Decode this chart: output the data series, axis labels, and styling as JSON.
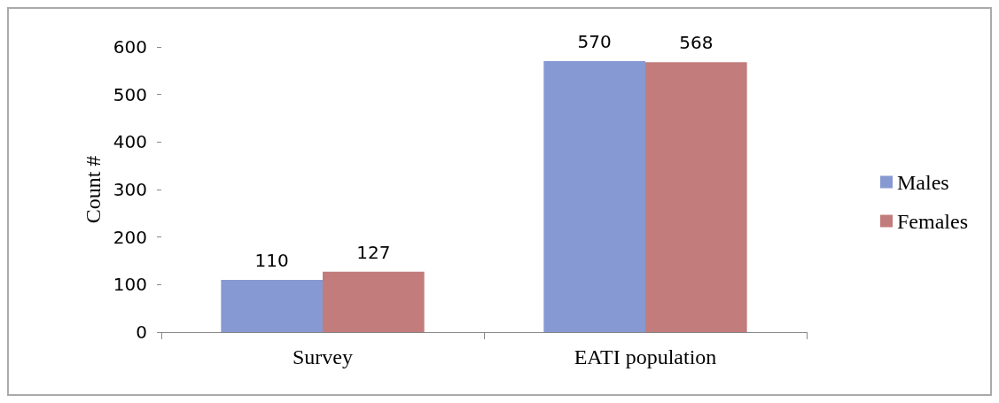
{
  "chart_data": {
    "type": "bar",
    "ylabel": "Count #",
    "categories": [
      "Survey",
      "EATI population"
    ],
    "series": [
      {
        "name": "Males",
        "color": "#8699d2",
        "values": [
          110,
          570
        ]
      },
      {
        "name": "Females",
        "color": "#c27c7b",
        "values": [
          127,
          568
        ]
      }
    ],
    "ylim": [
      0,
      600
    ],
    "yticks": [
      0,
      100,
      200,
      300,
      400,
      500,
      600
    ],
    "grid": false,
    "legend": "right",
    "data_labels": true
  }
}
